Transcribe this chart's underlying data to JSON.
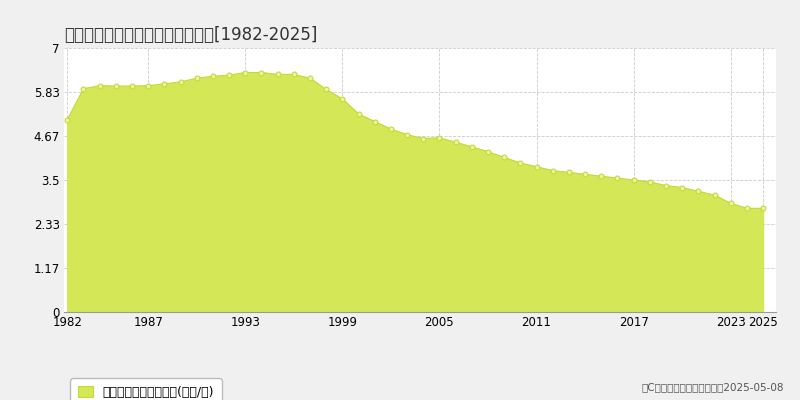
{
  "title": "中川郡幕別町寿町　公示地価推移[1982-2025]",
  "years": [
    1982,
    1983,
    1984,
    1985,
    1986,
    1987,
    1988,
    1989,
    1990,
    1991,
    1992,
    1993,
    1994,
    1995,
    1996,
    1997,
    1998,
    1999,
    2000,
    2001,
    2002,
    2003,
    2004,
    2005,
    2006,
    2007,
    2008,
    2009,
    2010,
    2011,
    2012,
    2013,
    2014,
    2015,
    2016,
    2017,
    2018,
    2019,
    2020,
    2021,
    2022,
    2023,
    2024,
    2025
  ],
  "values": [
    5.1,
    5.92,
    6.0,
    5.99,
    5.99,
    6.0,
    6.05,
    6.1,
    6.2,
    6.25,
    6.28,
    6.35,
    6.35,
    6.3,
    6.3,
    6.2,
    5.9,
    5.65,
    5.25,
    5.05,
    4.85,
    4.7,
    4.6,
    4.62,
    4.5,
    4.38,
    4.25,
    4.1,
    3.95,
    3.85,
    3.75,
    3.7,
    3.65,
    3.6,
    3.55,
    3.5,
    3.45,
    3.35,
    3.3,
    3.2,
    3.1,
    2.88,
    2.75,
    2.75
  ],
  "ylim": [
    0,
    7
  ],
  "yticks": [
    0,
    1.17,
    2.33,
    3.5,
    4.67,
    5.83,
    7
  ],
  "ytick_labels": [
    "0",
    "1.17",
    "2.33",
    "3.5",
    "4.67",
    "5.83",
    "7"
  ],
  "xtick_years": [
    1982,
    1987,
    1993,
    1999,
    2005,
    2011,
    2017,
    2023,
    2025
  ],
  "fill_color": "#d4e857",
  "line_color": "#c5d93a",
  "marker_facecolor": "#eef5a0",
  "marker_edgecolor": "#c5d93a",
  "bg_color": "#f0f0f0",
  "plot_bg_color": "#ffffff",
  "grid_color": "#cccccc",
  "legend_label": "公示地価　平均坪単価(万円/坪)",
  "copyright_text": "（C）土地価格ドットコム　2025-05-08",
  "title_fontsize": 12,
  "axis_fontsize": 8.5,
  "legend_fontsize": 9
}
